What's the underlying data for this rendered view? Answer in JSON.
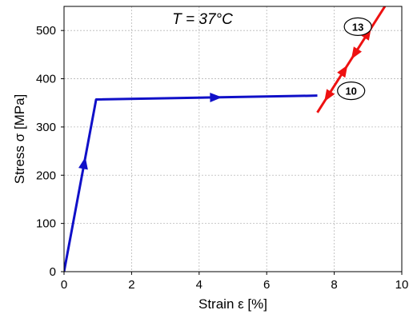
{
  "chart_data": {
    "type": "line",
    "title": "",
    "xlabel": "Strain ε [%]",
    "ylabel": "Stress σ [MPa]",
    "xlim": [
      0,
      10
    ],
    "ylim": [
      0,
      550
    ],
    "xticks": [
      0,
      2,
      4,
      6,
      8,
      10
    ],
    "yticks": [
      0,
      100,
      200,
      300,
      400,
      500
    ],
    "grid": true,
    "annotation": "T = 37°C",
    "series": [
      {
        "color": "#1010c8",
        "x": [
          0,
          0.95,
          7.5
        ],
        "y": [
          0,
          357,
          365
        ],
        "arrows_at_x": [
          0.6,
          4.5
        ]
      },
      {
        "color": "#ee1111",
        "x": [
          7.5,
          9.5
        ],
        "y": [
          330,
          550
        ],
        "arrows_at_x": [
          8.3,
          9.0,
          8.6,
          7.8
        ]
      }
    ],
    "labels": [
      {
        "text": "13",
        "x": 8.7,
        "y": 508
      },
      {
        "text": "10",
        "x": 8.5,
        "y": 375
      }
    ]
  }
}
